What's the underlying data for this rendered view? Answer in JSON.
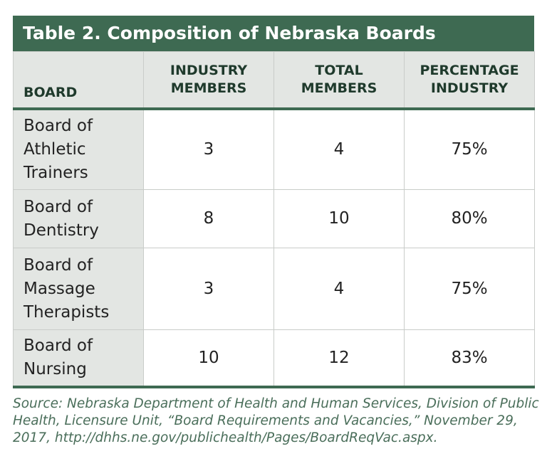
{
  "title": "Table 2. Composition of Nebraska Boards",
  "table": {
    "header": [
      "BOARD",
      "INDUSTRY MEMBERS",
      "TOTAL MEMBERS",
      "PERCENTAGE INDUSTRY"
    ],
    "rows": [
      [
        "Board of Athletic Trainers",
        3,
        4,
        "75%"
      ],
      [
        "Board of Dentistry",
        8,
        10,
        "80%"
      ],
      [
        "Board of Massage Therapists",
        3,
        4,
        "75%"
      ],
      [
        "Board of Nursing",
        10,
        12,
        "83%"
      ]
    ]
  },
  "source": "Source: Nebraska Department of Health and Human Services, Division of Public Health, Licensure Unit, “Board Requirements and Vacancies,” November 29, 2017, http://dhhs.ne.gov/publichealth/Pages/BoardReqVac.aspx."
}
